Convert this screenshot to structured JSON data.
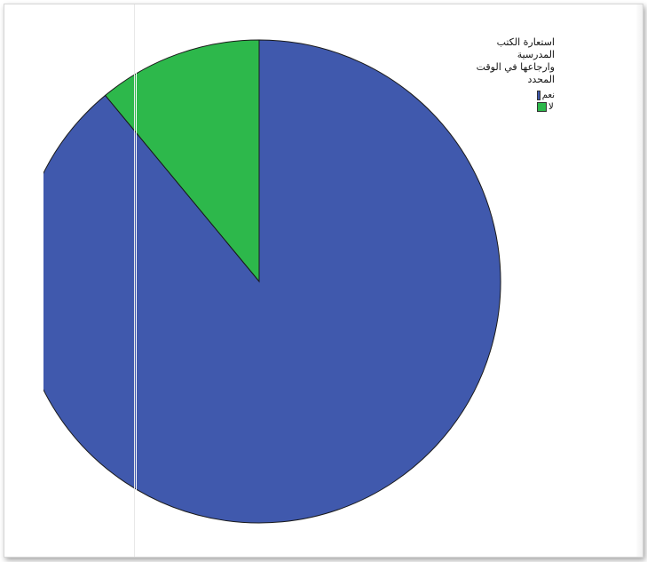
{
  "chart_data": {
    "type": "pie",
    "title": "استعارة الكتب المدرسية وارجاعها في الوقت المحدد",
    "title_lines": [
      "استعارة الكتب المدرسية",
      "وارجاعها في الوقت المحدد"
    ],
    "slices": [
      {
        "label": "نعم",
        "value": 89,
        "color": "#4059ad"
      },
      {
        "label": "لا",
        "value": 11,
        "color": "#2db84b"
      }
    ],
    "legend_position": "top-right"
  }
}
